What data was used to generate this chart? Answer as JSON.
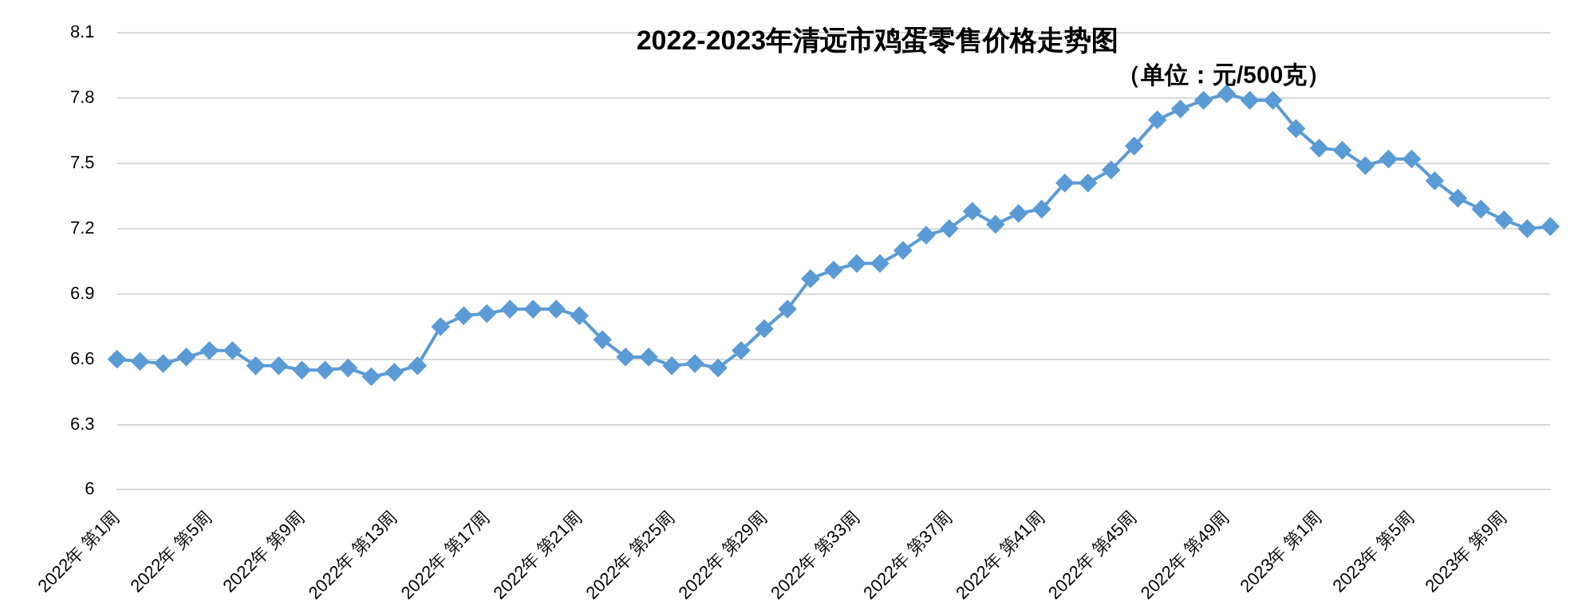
{
  "chart_data": {
    "type": "line",
    "title": "2022-2023年清远市鸡蛋零售价格走势图",
    "subtitle": "（单位：元/500克）",
    "categories": [
      "2022年 第1周",
      null,
      null,
      null,
      "2022年 第5周",
      null,
      null,
      null,
      "2022年 第9周",
      null,
      null,
      null,
      "2022年 第13周",
      null,
      null,
      null,
      "2022年 第17周",
      null,
      null,
      null,
      "2022年 第21周",
      null,
      null,
      null,
      "2022年 第25周",
      null,
      null,
      null,
      "2022年 第29周",
      null,
      null,
      null,
      "2022年 第33周",
      null,
      null,
      null,
      "2022年 第37周",
      null,
      null,
      null,
      "2022年 第41周",
      null,
      null,
      null,
      "2022年 第45周",
      null,
      null,
      null,
      "2022年 第49周",
      null,
      null,
      null,
      "2023年 第1周",
      null,
      null,
      null,
      "2023年 第5周",
      null,
      null,
      null,
      "2023年 第9周",
      null,
      null
    ],
    "series": [
      {
        "color": "#5b9bd5",
        "values": [
          6.6,
          6.59,
          6.58,
          6.61,
          6.64,
          6.64,
          6.57,
          6.57,
          6.55,
          6.55,
          6.56,
          6.52,
          6.54,
          6.57,
          6.75,
          6.8,
          6.81,
          6.83,
          6.83,
          6.83,
          6.8,
          6.69,
          6.61,
          6.61,
          6.57,
          6.58,
          6.56,
          6.64,
          6.74,
          6.83,
          6.97,
          7.01,
          7.04,
          7.04,
          7.1,
          7.17,
          7.2,
          7.28,
          7.22,
          7.27,
          7.29,
          7.41,
          7.41,
          7.47,
          7.58,
          7.7,
          7.75,
          7.79,
          7.82,
          7.79,
          7.79,
          7.66,
          7.57,
          7.56,
          7.49,
          7.52,
          7.52,
          7.42,
          7.34,
          7.29,
          7.24,
          7.2,
          7.21
        ]
      }
    ],
    "ylim": [
      6,
      8.1
    ],
    "yticks": [
      6,
      6.3,
      6.6,
      6.9,
      7.2,
      7.5,
      7.8,
      8.1
    ],
    "grid": "y",
    "legend": false,
    "marker": "diamond",
    "line_style": "solid"
  }
}
